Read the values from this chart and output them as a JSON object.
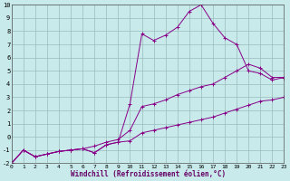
{
  "background_color": "#c8eaea",
  "grid_color": "#9bbcbc",
  "line_color": "#880088",
  "xlim": [
    0,
    23
  ],
  "ylim": [
    -2,
    10
  ],
  "xticks": [
    0,
    1,
    2,
    3,
    4,
    5,
    6,
    7,
    8,
    9,
    10,
    11,
    12,
    13,
    14,
    15,
    16,
    17,
    18,
    19,
    20,
    21,
    22,
    23
  ],
  "yticks": [
    -2,
    -1,
    0,
    1,
    2,
    3,
    4,
    5,
    6,
    7,
    8,
    9,
    10
  ],
  "xlabel": "Windchill (Refroidissement éolien,°C)",
  "line1_x": [
    0,
    1,
    2,
    3,
    4,
    5,
    6,
    7,
    8,
    9,
    10,
    11,
    12,
    13,
    14,
    15,
    16,
    17,
    18,
    19,
    20,
    21,
    22,
    23
  ],
  "line1_y": [
    -2.0,
    -1.0,
    -1.5,
    -1.3,
    -1.1,
    -1.0,
    -0.9,
    -1.2,
    -0.6,
    -0.4,
    -0.3,
    0.3,
    0.5,
    0.7,
    0.9,
    1.1,
    1.3,
    1.5,
    1.8,
    2.1,
    2.4,
    2.7,
    2.8,
    3.0
  ],
  "line2_x": [
    0,
    1,
    2,
    3,
    4,
    5,
    6,
    7,
    8,
    9,
    10,
    11,
    12,
    13,
    14,
    15,
    16,
    17,
    18,
    19,
    20,
    21,
    22,
    23
  ],
  "line2_y": [
    -2.0,
    -1.0,
    -1.5,
    -1.3,
    -1.1,
    -1.0,
    -0.9,
    -1.2,
    -0.6,
    -0.4,
    2.5,
    7.8,
    7.3,
    7.7,
    8.3,
    9.5,
    10.0,
    8.6,
    7.5,
    7.0,
    5.0,
    4.8,
    4.3,
    4.5
  ],
  "line3_x": [
    0,
    1,
    2,
    3,
    4,
    5,
    6,
    7,
    8,
    9,
    10,
    11,
    12,
    13,
    14,
    15,
    16,
    17,
    18,
    19,
    20,
    21,
    22,
    23
  ],
  "line3_y": [
    -2.0,
    -1.0,
    -1.5,
    -1.3,
    -1.1,
    -1.0,
    -0.9,
    -0.7,
    -0.4,
    -0.2,
    0.5,
    2.3,
    2.5,
    2.8,
    3.2,
    3.5,
    3.8,
    4.0,
    4.5,
    5.0,
    5.5,
    5.2,
    4.5,
    4.5
  ]
}
